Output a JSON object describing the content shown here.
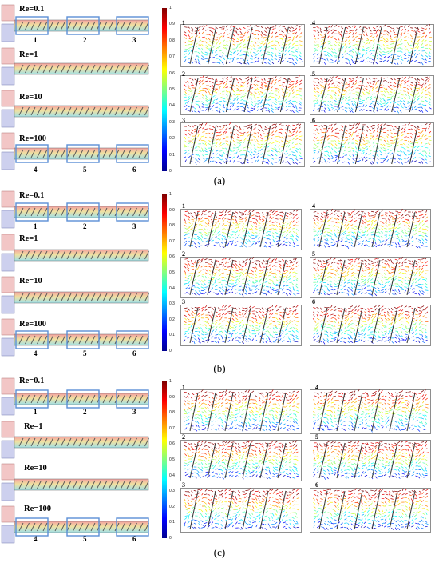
{
  "panels": [
    {
      "id": "a",
      "caption": "(a)",
      "re_labels": [
        "Re=0.1",
        "Re=1",
        "Re=10",
        "Re=100"
      ],
      "box_labels_top": [
        "1",
        "2",
        "3"
      ],
      "box_labels_bottom": [
        "4",
        "5",
        "6"
      ],
      "sub_labels": [
        "1",
        "4",
        "2",
        "5",
        "3",
        "6"
      ],
      "colorbar_ticks": [
        "1",
        "0.9",
        "0.8",
        "0.7",
        "0.6",
        "0.5",
        "0.4",
        "0.3",
        "0.2",
        "0.1",
        "0"
      ]
    },
    {
      "id": "b",
      "caption": "(b)",
      "re_labels": [
        "Re=0.1",
        "Re=1",
        "Re=10",
        "Re=100"
      ],
      "box_labels_top": [
        "1",
        "2",
        "3"
      ],
      "box_labels_bottom": [
        "4",
        "5",
        "6"
      ],
      "sub_labels": [
        "1",
        "4",
        "2",
        "5",
        "3",
        "6"
      ],
      "colorbar_ticks": [
        "1",
        "0.9",
        "0.8",
        "0.7",
        "0.6",
        "0.5",
        "0.4",
        "0.3",
        "0.2",
        "0.1",
        "0"
      ]
    },
    {
      "id": "c",
      "caption": "(c)",
      "re_labels": [
        "Re=0.1",
        "Re=1",
        "Re=10",
        "Re=100"
      ],
      "box_labels_top": [
        "1",
        "2",
        "3"
      ],
      "box_labels_bottom": [
        "4",
        "5",
        "6"
      ],
      "sub_labels": [
        "1",
        "4",
        "2",
        "5",
        "3",
        "6"
      ],
      "colorbar_ticks": [
        "1",
        "0.9",
        "0.8",
        "0.7",
        "0.6",
        "0.5",
        "0.4",
        "0.3",
        "0.2",
        "0.1",
        "0"
      ]
    }
  ],
  "colors": {
    "jet": [
      "#00008f",
      "#0000ff",
      "#0080ff",
      "#00ffff",
      "#80ff80",
      "#ffff00",
      "#ff8000",
      "#ff0000",
      "#800000"
    ],
    "highlight_box": "#5b8fd6"
  }
}
